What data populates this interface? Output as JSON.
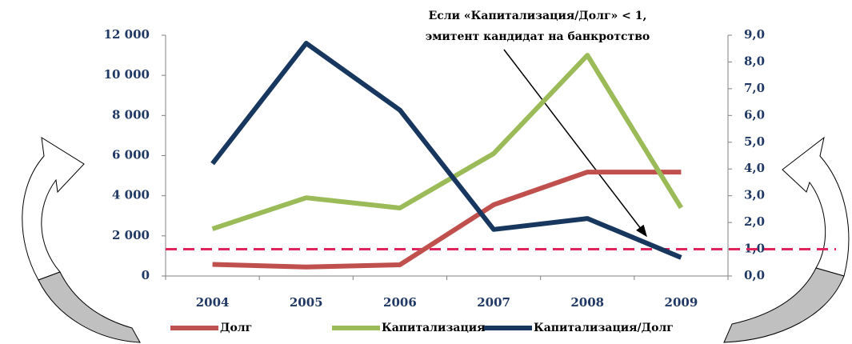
{
  "chart_data": {
    "type": "line",
    "annotation": [
      "Если «Капитализация/Долг» < 1,",
      "эмитент кандидат на банкротство"
    ],
    "categories": [
      "2004",
      "2005",
      "2006",
      "2007",
      "2008",
      "2009"
    ],
    "series": [
      {
        "name": "Долг",
        "color": "#c0504d",
        "values": [
          580,
          450,
          560,
          3550,
          5180,
          5180
        ]
      },
      {
        "name": "Капитализация",
        "color": "#9bbb59",
        "values": [
          2350,
          3900,
          3390,
          6100,
          11000,
          3400
        ]
      },
      {
        "name": "Капитализация/Долг",
        "color": "#17375e",
        "axis": "y2",
        "values": [
          4.2,
          8.7,
          6.2,
          1.74,
          2.15,
          0.69
        ]
      }
    ],
    "ylim": [
      0,
      12000
    ],
    "yticks": [
      0,
      {
        "value": 2000,
        "label": "2 000"
      },
      {
        "value": 4000,
        "label": "4 000"
      },
      {
        "value": 6000,
        "label": "6 000"
      },
      {
        "value": 8000,
        "label": "8 000"
      },
      {
        "value": 10000,
        "label": "10 000"
      },
      {
        "value": 12000,
        "label": "12 000"
      }
    ],
    "y2lim": [
      0,
      9
    ],
    "y2ticks": [
      {
        "value": 0,
        "label": "0,0"
      },
      {
        "value": 1,
        "label": "1,0"
      },
      {
        "value": 2,
        "label": "2,0"
      },
      {
        "value": 3,
        "label": "3,0"
      },
      {
        "value": 4,
        "label": "4,0"
      },
      {
        "value": 5,
        "label": "5,0"
      },
      {
        "value": 6,
        "label": "6,0"
      },
      {
        "value": 7,
        "label": "7,0"
      },
      {
        "value": 8,
        "label": "8,0"
      },
      {
        "value": 9,
        "label": "9,0"
      }
    ],
    "reference_line": {
      "value": 1,
      "axis": "y2",
      "color": "#e0245e"
    },
    "grid": false
  }
}
